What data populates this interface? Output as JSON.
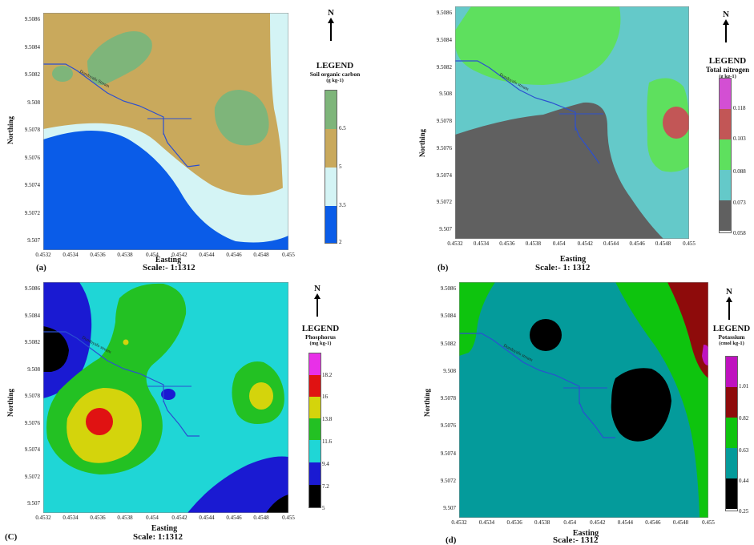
{
  "colors": {
    "soc": [
      "#0a5ce8",
      "#d4f4f5",
      "#c9a95c",
      "#7eb57a"
    ],
    "tn": [
      "#606060",
      "#64c9c9",
      "#5ee05e",
      "#c25656",
      "#d34fd3"
    ],
    "p": [
      "#000000",
      "#1a1ad2",
      "#1fd6d6",
      "#23c123",
      "#d4d40c",
      "#e01212",
      "#e830e8"
    ],
    "k": [
      "#000000",
      "#049b9b",
      "#0ec40e",
      "#8e0b0b",
      "#bf12bf"
    ],
    "stream": "#2b4fd1"
  },
  "panels": [
    {
      "id": "(a)",
      "scale": "Scale:- 1:1312",
      "easting_label": "Easting",
      "northing_label": "Northing",
      "x_ticks": [
        "0.4532",
        "0.4534",
        "0.4536",
        "0.4538",
        "0.454",
        "0.4542",
        "0.4544",
        "0.4546",
        "0.4548",
        "0.455"
      ],
      "y_ticks": [
        "9.5086",
        "9.5084",
        "9.5082",
        "9.508",
        "9.5078",
        "9.5076",
        "9.5074",
        "9.5072",
        "9.507"
      ],
      "stream_label": "Dunduyalu Stream",
      "legend": {
        "title": "LEGEND",
        "subtitle": "Soil organic carbon",
        "unit": "(g kg-1)",
        "values": [
          "6.5",
          "5",
          "3.5",
          "2"
        ]
      }
    },
    {
      "id": "(b)",
      "scale": "Scale:- 1: 1312",
      "easting_label": "Easting",
      "northing_label": "Northing",
      "x_ticks": [
        "0.4532",
        "0.4534",
        "0.4536",
        "0.4538",
        "0.454",
        "0.4542",
        "0.4544",
        "0.4546",
        "0.4548",
        "0.455"
      ],
      "y_ticks": [
        "9.5086",
        "9.5084",
        "9.5082",
        "9.508",
        "9.5078",
        "9.5076",
        "9.5074",
        "9.5072",
        "9.507"
      ],
      "stream_label": "Dunduyalu stream",
      "legend": {
        "title": "LEGEND",
        "subtitle": "Total nitrogen",
        "unit": "(g kg-1)",
        "values": [
          "0.118",
          "0.103",
          "0.088",
          "0.073",
          "0.058"
        ]
      }
    },
    {
      "id": "(C)",
      "scale": "Scale: 1:1312",
      "easting_label": "Easting",
      "northing_label": "Northing",
      "x_ticks": [
        "0.4532",
        "0.4534",
        "0.4536",
        "0.4538",
        "0.454",
        "0.4542",
        "0.4544",
        "0.4546",
        "0.4548",
        "0.455"
      ],
      "y_ticks": [
        "9.5086",
        "9.5084",
        "9.5082",
        "9.508",
        "9.5078",
        "9.5076",
        "9.5074",
        "9.5072",
        "9.507"
      ],
      "stream_label": "Dunduyalu stream",
      "legend": {
        "title": "LEGEND",
        "subtitle": "Phosphorus",
        "unit": "(mg kg-1)",
        "values": [
          "18.2",
          "16",
          "13.8",
          "11.6",
          "9.4",
          "7.2",
          "5"
        ]
      }
    },
    {
      "id": "(d)",
      "scale": "Scale:- 1312",
      "easting_label": "Easting",
      "northing_label": "Northing",
      "x_ticks": [
        "0.4532",
        "0.4534",
        "0.4536",
        "0.4538",
        "0.454",
        "0.4542",
        "0.4544",
        "0.4546",
        "0.4548",
        "0.455"
      ],
      "y_ticks": [
        "9.5086",
        "9.5084",
        "9.5082",
        "9.508",
        "9.5078",
        "9.5076",
        "9.5074",
        "9.5072",
        "9.507"
      ],
      "stream_label": "Dunduyalu stream",
      "legend": {
        "title": "LEGEND",
        "subtitle": "Potassium",
        "unit": "(cmol kg-1)",
        "values": [
          "1.01",
          "0.82",
          "0.63",
          "0.44",
          "0.25"
        ]
      }
    }
  ],
  "north_label": "N"
}
